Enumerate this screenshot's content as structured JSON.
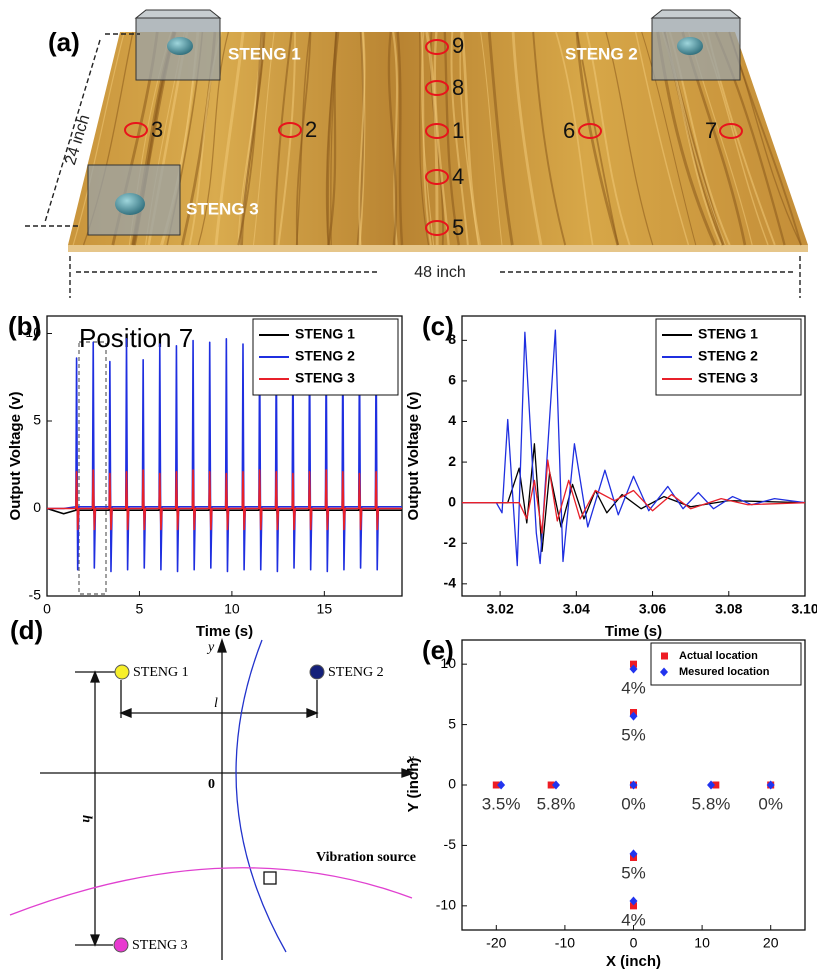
{
  "illustration": {
    "label": "(a)",
    "devices": [
      "STENG 1",
      "STENG 2",
      "STENG 3"
    ],
    "positions": [
      "1",
      "2",
      "3",
      "4",
      "5",
      "6",
      "7",
      "8",
      "9"
    ],
    "width_label": "48 inch",
    "depth_label": "24 inch"
  },
  "diagram": {
    "label": "(d)",
    "nodes": [
      "STENG 1",
      "STENG 2",
      "STENG 3"
    ],
    "axis_x": "x",
    "axis_y": "y",
    "origin": "0",
    "spacing_label": "l",
    "height_label": "h",
    "source_label": "Vibration source"
  },
  "chart_data": [
    {
      "type": "line",
      "panel_label": "(b)",
      "title": "Position 7",
      "x_label": "Time (s)",
      "y_label": "Output Voltage (v)",
      "xlim": [
        0,
        19.2
      ],
      "xticks": [
        0,
        5,
        10,
        15
      ],
      "ylim": [
        -5,
        11
      ],
      "yticks": [
        -5,
        0,
        5,
        10
      ],
      "legend": "upper right",
      "x": [
        0,
        0.9,
        1.56,
        1.6,
        1.66,
        1.72,
        2.46,
        2.5,
        2.56,
        2.62,
        3.36,
        3.4,
        3.46,
        3.52,
        4.26,
        4.3,
        4.36,
        4.42,
        5.16,
        5.2,
        5.26,
        5.32,
        6.06,
        6.1,
        6.16,
        6.22,
        6.96,
        7,
        7.06,
        7.12,
        7.86,
        7.9,
        7.96,
        8.02,
        8.76,
        8.8,
        8.86,
        8.92,
        9.66,
        9.7,
        9.76,
        9.82,
        10.56,
        10.6,
        10.66,
        10.72,
        11.46,
        11.5,
        11.56,
        11.62,
        12.36,
        12.4,
        12.46,
        12.52,
        13.26,
        13.3,
        13.36,
        13.42,
        14.16,
        14.2,
        14.26,
        14.32,
        15.06,
        15.1,
        15.16,
        15.22,
        15.96,
        16,
        16.06,
        16.12,
        16.86,
        16.9,
        16.96,
        17.02,
        17.76,
        17.8,
        17.86,
        17.92,
        19.2
      ],
      "series": [
        {
          "name": "STENG 1",
          "color": "#000000",
          "values": [
            0,
            -0.3,
            -0.1,
            0.3,
            -0.4,
            -0.1,
            -0.1,
            0.3,
            -0.4,
            -0.1,
            -0.1,
            0.3,
            -0.4,
            -0.1,
            -0.1,
            0.3,
            -0.4,
            -0.1,
            -0.1,
            0.3,
            -0.4,
            -0.1,
            -0.1,
            0.3,
            -0.4,
            -0.1,
            -0.1,
            0.3,
            -0.4,
            -0.1,
            -0.1,
            0.3,
            -0.4,
            -0.1,
            -0.1,
            0.3,
            -0.4,
            -0.1,
            -0.1,
            0.3,
            -0.4,
            -0.1,
            -0.1,
            0.3,
            -0.4,
            -0.1,
            -0.1,
            0.3,
            -0.4,
            -0.1,
            -0.1,
            0.3,
            -0.4,
            -0.1,
            -0.1,
            0.3,
            -0.4,
            -0.1,
            -0.1,
            0.3,
            -0.4,
            -0.1,
            -0.1,
            0.3,
            -0.4,
            -0.1,
            -0.1,
            0.3,
            -0.4,
            -0.1,
            -0.1,
            0.3,
            -0.4,
            -0.1,
            -0.1,
            0.3,
            -0.4,
            -0.1,
            -0.1
          ]
        },
        {
          "name": "STENG 2",
          "color": "#1f2fe0",
          "values": [
            0,
            0,
            0.1,
            8.6,
            -3.5,
            0.1,
            0.1,
            9.5,
            -3.4,
            0.1,
            0.1,
            8.4,
            -3.6,
            0.1,
            0.1,
            9.7,
            -3.5,
            0.1,
            0.1,
            8.5,
            -3.4,
            0.1,
            0.1,
            9.4,
            -3.5,
            0.1,
            0.1,
            9.3,
            -3.6,
            0.1,
            0.1,
            9.6,
            -3.5,
            0.1,
            0.1,
            9.5,
            -3.4,
            0.1,
            0.1,
            9.7,
            -3.6,
            0.1,
            0.1,
            9.4,
            -3.5,
            0.1,
            0.1,
            9.5,
            -3.5,
            0.1,
            0.1,
            9.3,
            -3.6,
            0.1,
            0.1,
            9.5,
            -3.4,
            0.1,
            0.1,
            9.6,
            -3.5,
            0.1,
            0.1,
            9.2,
            -3.6,
            0.1,
            0.1,
            9.4,
            -3.5,
            0.1,
            0.1,
            9.3,
            -3.4,
            0.1,
            0.1,
            9.5,
            -3.5,
            0.1,
            0.1
          ]
        },
        {
          "name": "STENG 3",
          "color": "#e8202a",
          "values": [
            0,
            0,
            0,
            2.1,
            -1.2,
            0,
            0,
            2.2,
            -1.2,
            0,
            0,
            2,
            -1.2,
            0,
            0,
            2.1,
            -1.2,
            0,
            0,
            2.2,
            -1.2,
            0,
            0,
            2,
            -1.2,
            0,
            0,
            2.1,
            -1.2,
            0,
            0,
            2.2,
            -1.2,
            0,
            0,
            2.1,
            -1.2,
            0,
            0,
            2,
            -1.2,
            0,
            0,
            2.1,
            -1.2,
            0,
            0,
            2.2,
            -1.2,
            0,
            0,
            2.1,
            -1.2,
            0,
            0,
            2,
            -1.2,
            0,
            0,
            2.1,
            -1.2,
            0,
            0,
            2.2,
            -1.2,
            0,
            0,
            2.1,
            -1.2,
            0,
            0,
            2,
            -1.2,
            0,
            0,
            2.1,
            -1.2,
            0,
            0
          ]
        }
      ]
    },
    {
      "type": "line",
      "panel_label": "(c)",
      "x_label": "Time (s)",
      "y_label": "Output Voltage (v)",
      "xlim": [
        3.01,
        3.1
      ],
      "xticks": [
        3.02,
        3.04,
        3.06,
        3.08,
        {
          "value": 3.1,
          "label": "3.10"
        }
      ],
      "ylim": [
        -4.6,
        9.2
      ],
      "yticks": [
        -4,
        -2,
        0,
        2,
        4,
        6,
        8
      ],
      "legend": "upper right",
      "series": [
        {
          "name": "STENG 1",
          "color": "#000000",
          "x": [
            3.01,
            3.022,
            3.025,
            3.027,
            3.029,
            3.031,
            3.033,
            3.036,
            3.039,
            3.042,
            3.045,
            3.048,
            3.052,
            3.057,
            3.063,
            3.07,
            3.08,
            3.1
          ],
          "values": [
            0,
            0,
            1.7,
            -1,
            2.9,
            -2.4,
            1.5,
            -1.2,
            0.9,
            -0.8,
            0.6,
            -0.5,
            0.4,
            -0.3,
            0.3,
            -0.2,
            0.1,
            0
          ]
        },
        {
          "name": "STENG 2",
          "color": "#1f2fe0",
          "x": [
            3.01,
            3.019,
            3.0205,
            3.022,
            3.0245,
            3.0265,
            3.0295,
            3.0305,
            3.0345,
            3.0365,
            3.0395,
            3.043,
            3.0475,
            3.051,
            3.055,
            3.059,
            3.064,
            3.068,
            3.072,
            3.076,
            3.081,
            3.086,
            3.092,
            3.1
          ],
          "values": [
            0,
            0,
            -0.5,
            4.1,
            -3.1,
            8.4,
            -1.5,
            -3,
            8.5,
            -2.9,
            2.9,
            -1.2,
            1.6,
            -0.6,
            1.3,
            -0.4,
            0.8,
            -0.3,
            0.5,
            -0.3,
            0.3,
            -0.1,
            0.2,
            0
          ]
        },
        {
          "name": "STENG 3",
          "color": "#e8202a",
          "x": [
            3.01,
            3.025,
            3.027,
            3.029,
            3.031,
            3.0325,
            3.035,
            3.038,
            3.041,
            3.045,
            3.05,
            3.055,
            3.06,
            3.065,
            3.07,
            3.078,
            3.085,
            3.1
          ],
          "values": [
            0,
            0,
            -0.8,
            1.1,
            -1.5,
            2.1,
            -0.9,
            1.1,
            -0.8,
            0.6,
            0.1,
            0.6,
            -0.4,
            0.4,
            -0.3,
            0.2,
            -0.1,
            0
          ]
        }
      ]
    },
    {
      "type": "scatter",
      "panel_label": "(e)",
      "x_label": "X (inch)",
      "y_label": "Y (inch)",
      "xlim": [
        -25,
        25
      ],
      "xticks": [
        -20,
        -10,
        0,
        10,
        20
      ],
      "ylim": [
        -12,
        12
      ],
      "yticks": [
        -10,
        -5,
        0,
        5,
        10
      ],
      "legend": "upper right",
      "series": [
        {
          "name": "Actual location",
          "color": "#ee1c24",
          "marker": "square",
          "x": [
            -20,
            -12,
            0,
            12,
            20,
            0,
            0,
            0,
            0
          ],
          "values": [
            0,
            0,
            0,
            0,
            0,
            10,
            6,
            -6,
            -10
          ]
        },
        {
          "name": "Mesured location",
          "color": "#2234ee",
          "marker": "diamond",
          "x": [
            -19.3,
            -11.3,
            0,
            11.3,
            20,
            0,
            0,
            0,
            0
          ],
          "values": [
            0,
            0,
            0,
            0,
            0,
            9.6,
            5.7,
            -5.7,
            -9.6
          ],
          "error_labels": [
            "3.5%",
            "5.8%",
            "0%",
            "5.8%",
            "0%",
            "4%",
            "5%",
            "5%",
            "4%"
          ]
        }
      ]
    }
  ]
}
